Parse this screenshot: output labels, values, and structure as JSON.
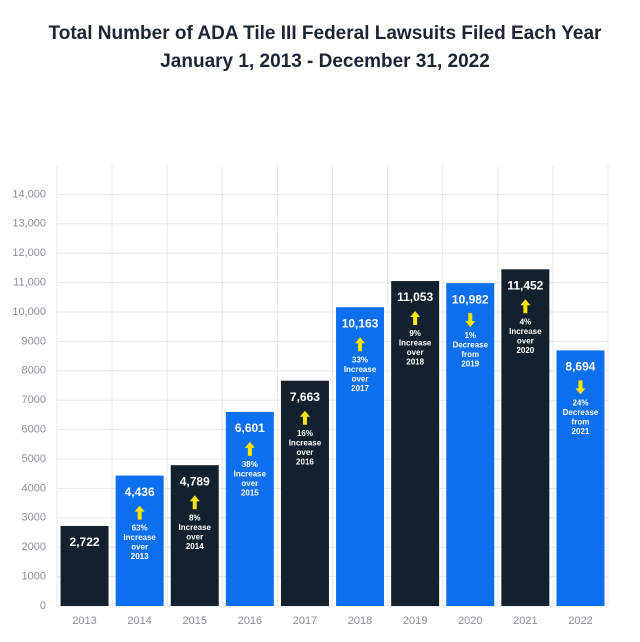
{
  "chart_data": {
    "type": "bar",
    "title": "Total Number of ADA Tile III Federal Lawsuits Filed Each Year",
    "subtitle": "January 1, 2013 - December 31, 2022",
    "categories": [
      "2013",
      "2014",
      "2015",
      "2016",
      "2017",
      "2018",
      "2019",
      "2020",
      "2021",
      "2022"
    ],
    "values": [
      2722,
      4436,
      4789,
      6601,
      7663,
      10163,
      11053,
      10982,
      11452,
      8694
    ],
    "value_labels": [
      "2,722",
      "4,436",
      "4,789",
      "6,601",
      "7,663",
      "10,163",
      "11,053",
      "10,982",
      "11,452",
      "8,694"
    ],
    "colors": [
      "#13212f",
      "#0b6ff0",
      "#13212f",
      "#0b6ff0",
      "#13212f",
      "#0b6ff0",
      "#13212f",
      "#0b6ff0",
      "#13212f",
      "#0b6ff0"
    ],
    "annotations": [
      null,
      {
        "direction": "up",
        "lines": [
          "63%",
          "Increase",
          "over",
          "2013"
        ]
      },
      {
        "direction": "up",
        "lines": [
          "8%",
          "Increase",
          "over",
          "2014"
        ]
      },
      {
        "direction": "up",
        "lines": [
          "38%",
          "Increase",
          "over",
          "2015"
        ]
      },
      {
        "direction": "up",
        "lines": [
          "16%",
          "Increase",
          "over",
          "2016"
        ]
      },
      {
        "direction": "up",
        "lines": [
          "33%",
          "Increase",
          "over",
          "2017"
        ]
      },
      {
        "direction": "up",
        "lines": [
          "9%",
          "Increase",
          "over",
          "2018"
        ]
      },
      {
        "direction": "down",
        "lines": [
          "1%",
          "Decrease",
          "from",
          "2019"
        ]
      },
      {
        "direction": "up",
        "lines": [
          "4%",
          "Increase",
          "over",
          "2020"
        ]
      },
      {
        "direction": "down",
        "lines": [
          "24%",
          "Decrease",
          "from",
          "2021"
        ]
      }
    ],
    "arrow_color": "#ffe600",
    "ylim": [
      0,
      15000
    ],
    "yticks": [
      0,
      1000,
      2000,
      3000,
      4000,
      5000,
      6000,
      7000,
      8000,
      9000,
      {
        "value": 10000,
        "label": "10,000"
      },
      {
        "value": 11000,
        "label": "11,000"
      },
      {
        "value": 12000,
        "label": "12,000"
      },
      {
        "value": 13000,
        "label": "13,000"
      },
      {
        "value": 14000,
        "label": "14,000"
      }
    ],
    "grid": true
  }
}
